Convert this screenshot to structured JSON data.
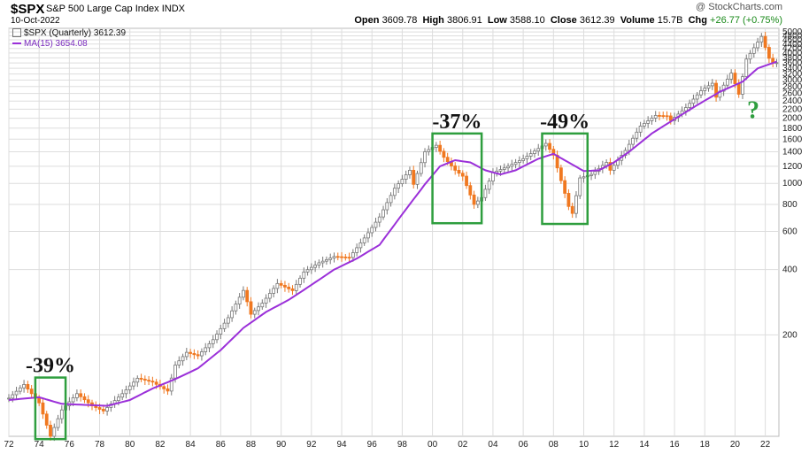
{
  "header": {
    "symbol": "$SPX",
    "name": "S&P 500 Large Cap Index",
    "exchange": "INDX",
    "date": "10-Oct-2022",
    "brand": "@ StockCharts.com",
    "open_label": "Open",
    "open": "3609.78",
    "high_label": "High",
    "high": "3806.91",
    "low_label": "Low",
    "low": "3588.10",
    "close_label": "Close",
    "close": "3612.39",
    "volume_label": "Volume",
    "volume": "15.7B",
    "chg_label": "Chg",
    "chg": "+26.77 (+0.75%)",
    "chg_color": "#1a8a1a"
  },
  "legend": {
    "price": "$SPX (Quarterly) 3612.39",
    "ma": "MA(15) 3654.08"
  },
  "colors": {
    "up": "#888888",
    "down": "#f07820",
    "ma": "#9b30d9",
    "box": "#2e9e3e",
    "grid": "#dddddd"
  },
  "chart_data": {
    "type": "candlestick",
    "title": "$SPX S&P 500 Large Cap Index",
    "scale": "log",
    "interval": "quarterly",
    "xlim": [
      1972.0,
      2022.9
    ],
    "ylim": [
      68,
      5200
    ],
    "grid": true,
    "x_ticks": [
      "72",
      "74",
      "76",
      "78",
      "80",
      "82",
      "84",
      "86",
      "88",
      "90",
      "92",
      "94",
      "96",
      "98",
      "00",
      "02",
      "04",
      "06",
      "08",
      "10",
      "12",
      "14",
      "16",
      "18",
      "20",
      "22"
    ],
    "y_ticks": [
      200,
      400,
      600,
      800,
      1000,
      1200,
      1400,
      1600,
      1800,
      2000,
      2200,
      2400,
      2600,
      2800,
      3000,
      3200,
      3400,
      3600,
      3800,
      4000,
      4200,
      4400,
      4600,
      4800,
      5000
    ],
    "price_anchors": [
      [
        1972.0,
        102
      ],
      [
        1973.0,
        118
      ],
      [
        1974.0,
        97
      ],
      [
        1974.75,
        68
      ],
      [
        1975.5,
        90
      ],
      [
        1976.5,
        107
      ],
      [
        1977.5,
        94
      ],
      [
        1978.25,
        89
      ],
      [
        1979.5,
        107
      ],
      [
        1980.5,
        126
      ],
      [
        1981.5,
        121
      ],
      [
        1982.5,
        110
      ],
      [
        1983.0,
        145
      ],
      [
        1983.75,
        166
      ],
      [
        1984.5,
        160
      ],
      [
        1985.5,
        190
      ],
      [
        1986.5,
        240
      ],
      [
        1987.6,
        330
      ],
      [
        1987.9,
        245
      ],
      [
        1988.75,
        280
      ],
      [
        1989.75,
        345
      ],
      [
        1990.75,
        320
      ],
      [
        1991.5,
        390
      ],
      [
        1992.5,
        430
      ],
      [
        1993.5,
        460
      ],
      [
        1994.5,
        455
      ],
      [
        1995.5,
        560
      ],
      [
        1996.5,
        700
      ],
      [
        1997.5,
        950
      ],
      [
        1998.5,
        1150
      ],
      [
        1998.75,
        990
      ],
      [
        1999.5,
        1400
      ],
      [
        2000.25,
        1500
      ],
      [
        2000.75,
        1320
      ],
      [
        2001.5,
        1150
      ],
      [
        2002.0,
        1080
      ],
      [
        2002.75,
        800
      ],
      [
        2003.25,
        860
      ],
      [
        2004.0,
        1120
      ],
      [
        2005.0,
        1200
      ],
      [
        2006.0,
        1300
      ],
      [
        2007.5,
        1530
      ],
      [
        2008.0,
        1350
      ],
      [
        2008.75,
        900
      ],
      [
        2009.2,
        700
      ],
      [
        2009.75,
        1060
      ],
      [
        2010.5,
        1100
      ],
      [
        2011.5,
        1250
      ],
      [
        2011.75,
        1150
      ],
      [
        2012.75,
        1420
      ],
      [
        2013.75,
        1840
      ],
      [
        2014.75,
        2060
      ],
      [
        2015.5,
        2050
      ],
      [
        2015.75,
        1950
      ],
      [
        2016.75,
        2240
      ],
      [
        2017.75,
        2680
      ],
      [
        2018.5,
        2900
      ],
      [
        2018.75,
        2500
      ],
      [
        2019.75,
        3230
      ],
      [
        2020.25,
        2580
      ],
      [
        2020.75,
        3750
      ],
      [
        2021.75,
        4770
      ],
      [
        2022.25,
        3780
      ],
      [
        2022.5,
        3590
      ],
      [
        2022.78,
        3612
      ]
    ],
    "ma_anchors": [
      [
        1972.0,
        100
      ],
      [
        1974.0,
        103
      ],
      [
        1975.5,
        96
      ],
      [
        1977.0,
        95
      ],
      [
        1978.5,
        94
      ],
      [
        1980.0,
        100
      ],
      [
        1981.5,
        113
      ],
      [
        1983.0,
        125
      ],
      [
        1984.5,
        140
      ],
      [
        1986.0,
        170
      ],
      [
        1987.5,
        215
      ],
      [
        1989.0,
        255
      ],
      [
        1990.5,
        290
      ],
      [
        1992.0,
        340
      ],
      [
        1993.5,
        400
      ],
      [
        1995.0,
        450
      ],
      [
        1996.5,
        520
      ],
      [
        1998.0,
        720
      ],
      [
        1999.5,
        990
      ],
      [
        2000.5,
        1200
      ],
      [
        2001.5,
        1280
      ],
      [
        2002.5,
        1250
      ],
      [
        2003.5,
        1150
      ],
      [
        2004.5,
        1100
      ],
      [
        2005.5,
        1150
      ],
      [
        2007.0,
        1300
      ],
      [
        2008.0,
        1370
      ],
      [
        2009.0,
        1250
      ],
      [
        2010.0,
        1140
      ],
      [
        2011.0,
        1150
      ],
      [
        2012.0,
        1250
      ],
      [
        2013.0,
        1400
      ],
      [
        2014.5,
        1700
      ],
      [
        2016.0,
        1980
      ],
      [
        2017.5,
        2300
      ],
      [
        2019.0,
        2650
      ],
      [
        2020.5,
        2950
      ],
      [
        2021.5,
        3400
      ],
      [
        2022.78,
        3654
      ]
    ],
    "annotations": [
      {
        "label": "-39%",
        "x0": 1973.75,
        "x1": 1975.75,
        "ylow": 66,
        "yhigh": 127
      },
      {
        "label": "-37%",
        "x0": 2000.0,
        "x1": 2003.25,
        "ylow": 655,
        "yhigh": 1700
      },
      {
        "label": "-49%",
        "x0": 2007.25,
        "x1": 2010.25,
        "ylow": 650,
        "yhigh": 1700
      }
    ],
    "question_mark": "?"
  }
}
